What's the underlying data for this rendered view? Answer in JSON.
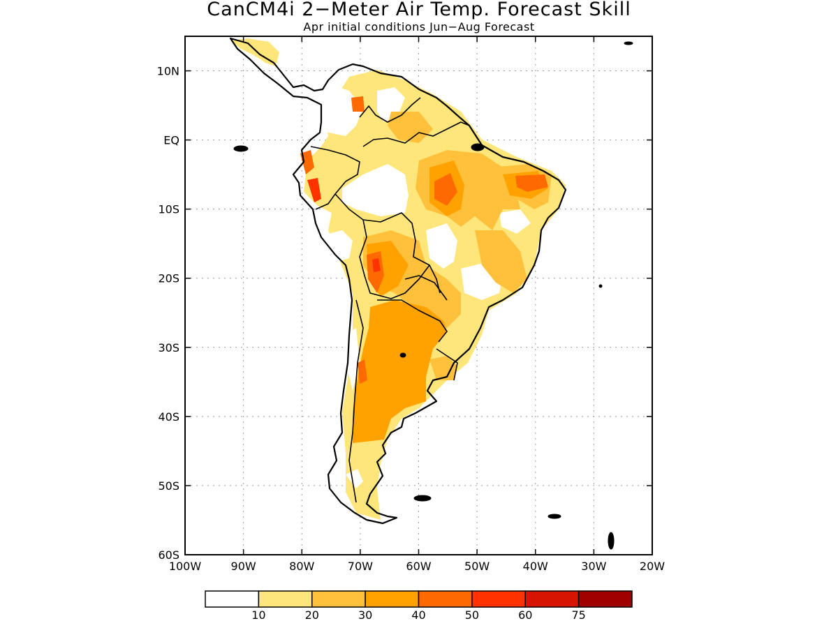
{
  "title": "CanCM4i 2−Meter Air Temp. Forecast Skill",
  "subtitle": "Apr initial conditions  Jun−Aug Forecast",
  "map": {
    "lon_range": [
      -100,
      -20
    ],
    "lat_range": [
      -60,
      15
    ],
    "lon_ticks": [
      {
        "value": -100,
        "label": "100W"
      },
      {
        "value": -90,
        "label": "90W"
      },
      {
        "value": -80,
        "label": "80W"
      },
      {
        "value": -70,
        "label": "70W"
      },
      {
        "value": -60,
        "label": "60W"
      },
      {
        "value": -50,
        "label": "50W"
      },
      {
        "value": -40,
        "label": "40W"
      },
      {
        "value": -30,
        "label": "30W"
      },
      {
        "value": -20,
        "label": "20W"
      }
    ],
    "lat_ticks": [
      {
        "value": 10,
        "label": "10N"
      },
      {
        "value": 0,
        "label": "EQ"
      },
      {
        "value": -10,
        "label": "10S"
      },
      {
        "value": -20,
        "label": "20S"
      },
      {
        "value": -30,
        "label": "30S"
      },
      {
        "value": -40,
        "label": "40S"
      },
      {
        "value": -50,
        "label": "50S"
      },
      {
        "value": -60,
        "label": "60S"
      }
    ],
    "grid": true
  },
  "legend": {
    "colors": [
      "#ffffff",
      "#ffe67a",
      "#ffc13c",
      "#ffa200",
      "#ff6a00",
      "#ff3200",
      "#d71400",
      "#a00000"
    ],
    "labels": [
      "10",
      "20",
      "30",
      "40",
      "50",
      "60",
      "75"
    ]
  }
}
